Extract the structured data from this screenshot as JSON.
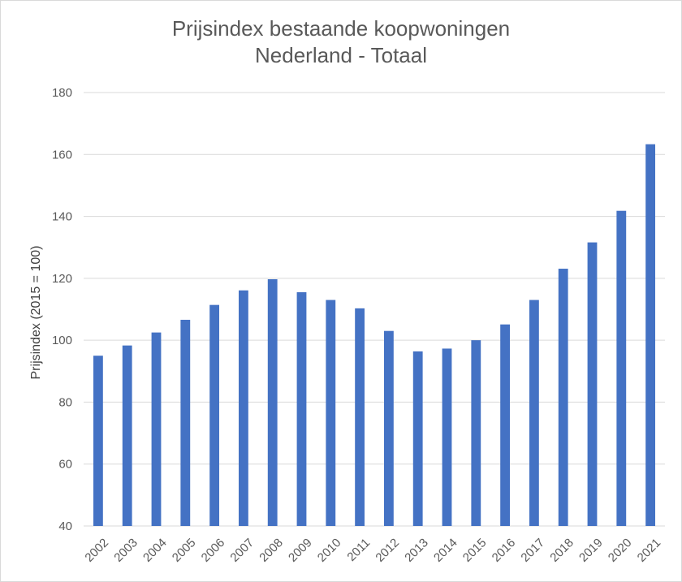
{
  "chart_data": {
    "type": "bar",
    "title_lines": [
      "Prijsindex bestaande koopwoningen",
      "Nederland - Totaal"
    ],
    "ylabel": "Prijsindex (2015 = 100)",
    "xlabel": "",
    "categories": [
      "2002",
      "2003",
      "2004",
      "2005",
      "2006",
      "2007",
      "2008",
      "2009",
      "2010",
      "2011",
      "2012",
      "2013",
      "2014",
      "2015",
      "2016",
      "2017",
      "2018",
      "2019",
      "2020",
      "2021"
    ],
    "values": [
      95.0,
      98.3,
      102.5,
      106.6,
      111.4,
      116.1,
      119.7,
      115.5,
      113.0,
      110.3,
      103.0,
      96.4,
      97.3,
      100.0,
      105.1,
      113.0,
      123.1,
      131.6,
      141.8,
      163.3
    ],
    "ylim": [
      40,
      180
    ],
    "yticks": [
      40,
      60,
      80,
      100,
      120,
      140,
      160,
      180
    ],
    "grid": true,
    "legend": "none",
    "colors": {
      "bar": "#4472c4",
      "grid": "#d9d9d9",
      "text": "#595959"
    }
  }
}
